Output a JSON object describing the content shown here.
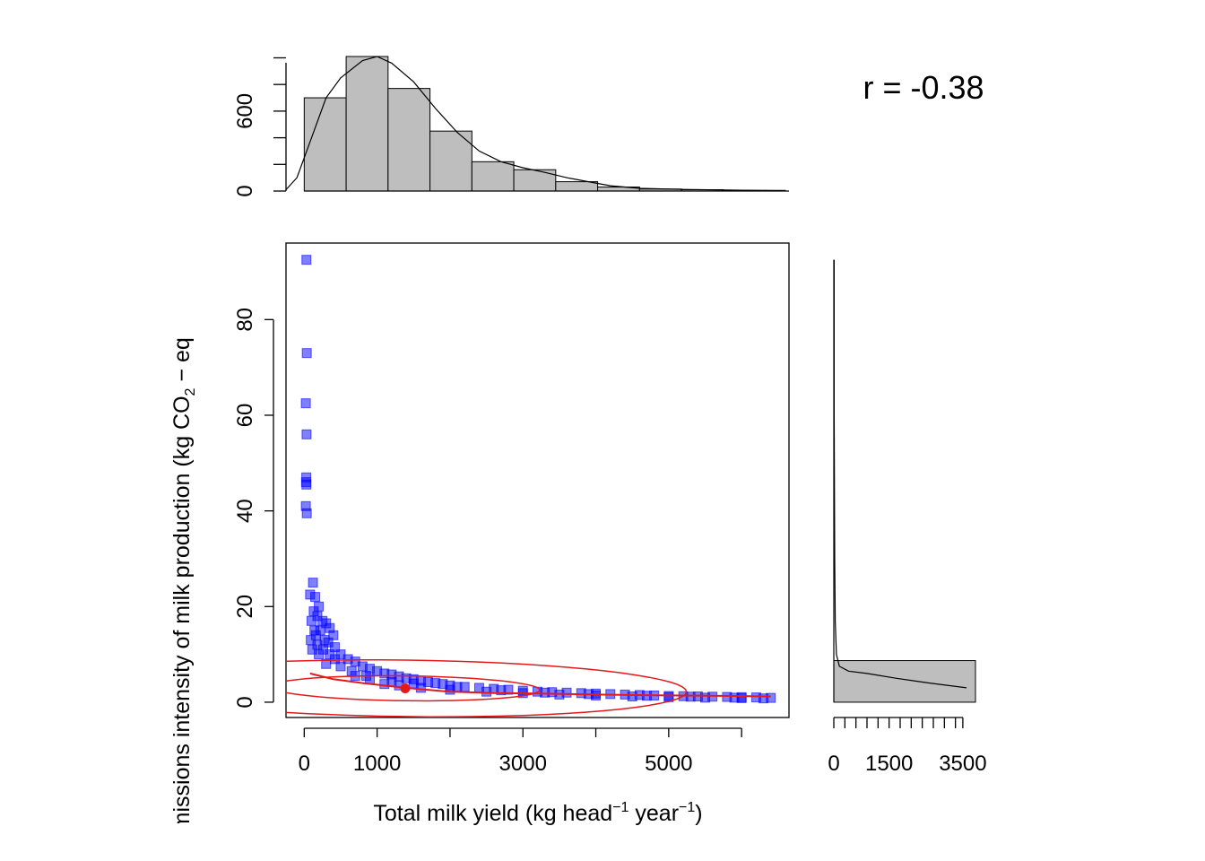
{
  "correlation_label": "r = -0.38",
  "xlabel": {
    "main": "Total milk yield (kg head",
    "sup1": "−1",
    "mid": " year",
    "sup2": "−1",
    "end": ")"
  },
  "ylabel": {
    "main": "Total emissions intensity of milk production (kg CO",
    "sub": "2",
    "end": " − eq"
  },
  "colors": {
    "points": "#0000ff",
    "ellipse": "#e31a1c",
    "hist_fill": "#bebebe",
    "axis": "#000000"
  },
  "chart_data": [
    {
      "type": "scatter",
      "panel": "main",
      "xlim": [
        -250,
        6650
      ],
      "ylim": [
        -3.2,
        96
      ],
      "x_ticks": [
        0,
        1000,
        3000,
        5000
      ],
      "x_ticks_minor": [
        2000,
        4000,
        6000
      ],
      "y_ticks": [
        0,
        20,
        40,
        60,
        80
      ],
      "series": [
        {
          "marker": "square",
          "color": "#0000ff",
          "points": [
            [
              30,
              92.5
            ],
            [
              35,
              73
            ],
            [
              22,
              62.5
            ],
            [
              32,
              56
            ],
            [
              28,
              47
            ],
            [
              25,
              46
            ],
            [
              30,
              45.5
            ],
            [
              22,
              41
            ],
            [
              35,
              39.5
            ],
            [
              120,
              25
            ],
            [
              80,
              22.5
            ],
            [
              150,
              22
            ],
            [
              200,
              20
            ],
            [
              130,
              19
            ],
            [
              180,
              18
            ],
            [
              250,
              17
            ],
            [
              100,
              17
            ],
            [
              300,
              16.5
            ],
            [
              350,
              15.5
            ],
            [
              140,
              15
            ],
            [
              220,
              15
            ],
            [
              400,
              14
            ],
            [
              160,
              14
            ],
            [
              280,
              13
            ],
            [
              90,
              13
            ],
            [
              330,
              12.5
            ],
            [
              180,
              12
            ],
            [
              420,
              11.5
            ],
            [
              260,
              11
            ],
            [
              110,
              11
            ],
            [
              500,
              10
            ],
            [
              350,
              10
            ],
            [
              200,
              10
            ],
            [
              600,
              9
            ],
            [
              420,
              9
            ],
            [
              700,
              8.5
            ],
            [
              300,
              8
            ],
            [
              800,
              7.5
            ],
            [
              500,
              7.5
            ],
            [
              900,
              7
            ],
            [
              1000,
              6.5
            ],
            [
              650,
              6.5
            ],
            [
              1100,
              6
            ],
            [
              1200,
              5.8
            ],
            [
              850,
              5.5
            ],
            [
              1300,
              5.4
            ],
            [
              1400,
              5
            ],
            [
              1500,
              4.8
            ],
            [
              1600,
              4.5
            ],
            [
              1700,
              4.2
            ],
            [
              1800,
              4
            ],
            [
              1900,
              3.8
            ],
            [
              2000,
              3.5
            ],
            [
              2200,
              3.2
            ],
            [
              2400,
              3
            ],
            [
              2600,
              2.8
            ],
            [
              2800,
              2.6
            ],
            [
              3000,
              2.4
            ],
            [
              3200,
              2.2
            ],
            [
              3400,
              2.1
            ],
            [
              3600,
              2
            ],
            [
              3800,
              1.9
            ],
            [
              4000,
              1.8
            ],
            [
              4200,
              1.7
            ],
            [
              4400,
              1.6
            ],
            [
              4600,
              1.5
            ],
            [
              4800,
              1.4
            ],
            [
              5000,
              1.3
            ],
            [
              5200,
              1.25
            ],
            [
              5400,
              1.2
            ],
            [
              5600,
              1.15
            ],
            [
              5800,
              1.1
            ],
            [
              6000,
              1.05
            ],
            [
              6200,
              1
            ],
            [
              6400,
              0.9
            ],
            [
              1100,
              3.8
            ],
            [
              1300,
              3.5
            ],
            [
              1600,
              3
            ],
            [
              2000,
              2.6
            ],
            [
              2500,
              2.2
            ],
            [
              3000,
              1.9
            ],
            [
              3500,
              1.6
            ],
            [
              4000,
              1.4
            ],
            [
              4500,
              1.2
            ],
            [
              5000,
              1.05
            ],
            [
              5500,
              0.95
            ],
            [
              6000,
              0.85
            ],
            [
              6300,
              0.8
            ],
            [
              700,
              5.5
            ],
            [
              900,
              4.8
            ],
            [
              1200,
              4.2
            ],
            [
              1500,
              3.9
            ],
            [
              2100,
              3.2
            ],
            [
              2700,
              2.5
            ],
            [
              3300,
              2
            ],
            [
              3900,
              1.7
            ],
            [
              4700,
              1.35
            ],
            [
              5300,
              1.15
            ],
            [
              5900,
              0.95
            ]
          ]
        }
      ],
      "overlays": {
        "mean_point": [
          1385,
          2.9
        ],
        "ellipse_50": {
          "center": [
            1385,
            2.9
          ],
          "semi_major": 1845,
          "semi_minor": 2.6,
          "angle_deg": -1.1
        },
        "ellipse_95": {
          "center": [
            1385,
            2.9
          ],
          "semi_major": 3860,
          "semi_minor": 5.9,
          "angle_deg": -1.1
        },
        "loess_line": [
          [
            80,
            6
          ],
          [
            400,
            4.8
          ],
          [
            800,
            4
          ],
          [
            1200,
            3.3
          ],
          [
            1600,
            2.7
          ],
          [
            2000,
            2.2
          ],
          [
            2600,
            1.9
          ],
          [
            3200,
            1.8
          ],
          [
            4000,
            1.6
          ],
          [
            4800,
            1.45
          ],
          [
            5600,
            1.35
          ],
          [
            6400,
            1.2
          ]
        ]
      }
    },
    {
      "type": "bar",
      "panel": "top_histogram",
      "variable": "x",
      "bin_edges": [
        0,
        575,
        1150,
        1725,
        2300,
        2875,
        3450,
        4025,
        4600,
        5175,
        5750,
        6325,
        6600
      ],
      "values": [
        700,
        1010,
        770,
        450,
        220,
        160,
        70,
        30,
        15,
        10,
        5,
        5
      ],
      "ylim": [
        0,
        1010
      ],
      "y_ticks": [
        0,
        600
      ],
      "density_curve": [
        [
          -250,
          10
        ],
        [
          -100,
          100
        ],
        [
          100,
          400
        ],
        [
          300,
          700
        ],
        [
          500,
          850
        ],
        [
          800,
          980
        ],
        [
          1000,
          1010
        ],
        [
          1200,
          960
        ],
        [
          1500,
          820
        ],
        [
          1800,
          620
        ],
        [
          2100,
          440
        ],
        [
          2400,
          300
        ],
        [
          2700,
          220
        ],
        [
          3000,
          175
        ],
        [
          3300,
          140
        ],
        [
          3600,
          100
        ],
        [
          3900,
          70
        ],
        [
          4200,
          40
        ],
        [
          4600,
          20
        ],
        [
          5200,
          12
        ],
        [
          6000,
          6
        ],
        [
          6600,
          2
        ]
      ]
    },
    {
      "type": "bar",
      "panel": "right_histogram",
      "variable": "y",
      "orientation": "horizontal",
      "bin_edges": [
        0,
        8.7
      ],
      "values": [
        3600
      ],
      "xlim": [
        0,
        3600
      ],
      "x_ticks": [
        0,
        1500,
        3500
      ],
      "x_ticks_minor": [
        300,
        600,
        900,
        1200,
        1800,
        2100,
        2400,
        2700,
        3000,
        3300
      ],
      "density_curve": [
        [
          10,
          92.5
        ],
        [
          10,
          60
        ],
        [
          25,
          30
        ],
        [
          40,
          17
        ],
        [
          70,
          10
        ],
        [
          150,
          7.5
        ],
        [
          400,
          6.5
        ],
        [
          900,
          6
        ],
        [
          1700,
          5
        ],
        [
          2600,
          4
        ],
        [
          3600,
          3
        ]
      ]
    }
  ]
}
